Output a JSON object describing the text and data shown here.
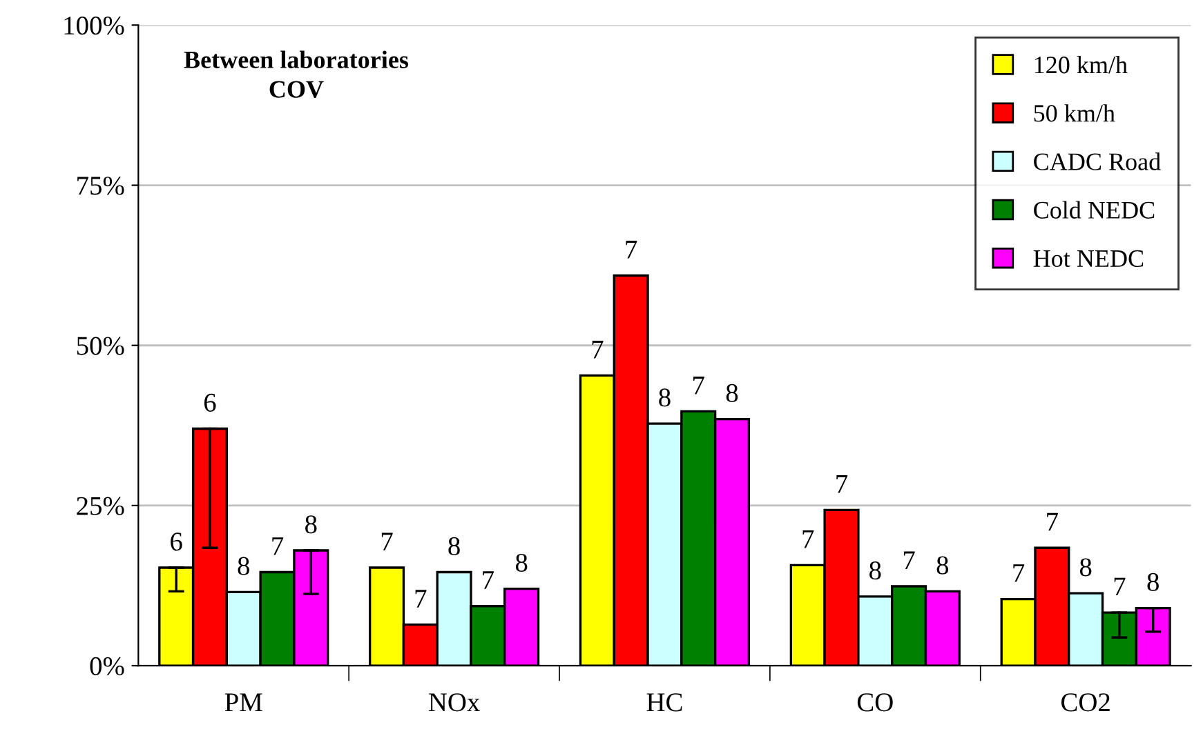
{
  "chart_data": {
    "type": "bar",
    "title": "Between laboratories\nCOV",
    "categories": [
      "PM",
      "NOx",
      "HC",
      "CO",
      "CO2"
    ],
    "series": [
      {
        "name": "120 km/h",
        "color": "#ffff00",
        "values": [
          15.3,
          15.3,
          45.3,
          15.7,
          10.4
        ],
        "errors": [
          [
            11.6,
            15.3
          ],
          null,
          null,
          null,
          null
        ]
      },
      {
        "name": "50 km/h",
        "color": "#ff0000",
        "values": [
          37.0,
          6.4,
          60.9,
          24.3,
          18.4
        ],
        "errors": [
          [
            18.4,
            37.0
          ],
          null,
          null,
          null,
          null
        ]
      },
      {
        "name": "CADC Road",
        "color": "#ccffff",
        "values": [
          11.5,
          14.6,
          37.8,
          10.8,
          11.3
        ]
      },
      {
        "name": "Cold NEDC",
        "color": "#008000",
        "values": [
          14.6,
          9.3,
          39.7,
          12.4,
          8.3
        ],
        "errors": [
          null,
          null,
          null,
          null,
          [
            4.4,
            8.3
          ]
        ]
      },
      {
        "name": "Hot NEDC",
        "color": "#ff00ff",
        "values": [
          18.0,
          12.0,
          38.5,
          11.6,
          9.0
        ],
        "errors": [
          [
            11.2,
            18.0
          ],
          null,
          null,
          null,
          [
            5.3,
            9.0
          ]
        ]
      }
    ],
    "annotations": [
      "6",
      "6",
      "8",
      "7",
      "8",
      "7",
      "7",
      "8",
      "7",
      "8",
      "7",
      "7",
      "8",
      "7",
      "8",
      "7",
      "7",
      "8",
      "7",
      "8",
      "7",
      "7",
      "8",
      "7",
      "8"
    ],
    "ylim": [
      0,
      100
    ],
    "yticks": [
      {
        "value": 0,
        "label": "0%"
      },
      {
        "value": 25,
        "label": "25%"
      },
      {
        "value": 50,
        "label": "50%"
      },
      {
        "value": 75,
        "label": "75%"
      },
      {
        "value": 100,
        "label": "100%"
      }
    ],
    "grid": "y",
    "legend": "top right"
  }
}
